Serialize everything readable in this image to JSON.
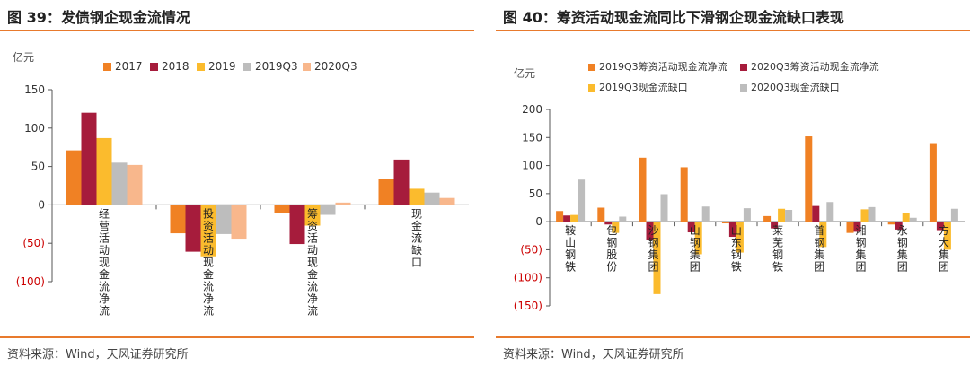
{
  "source_label": "资料来源：Wind，天风证券研究所",
  "colors": {
    "c2017": "#f08124",
    "c2018": "#a61c3c",
    "c2019": "#fbbb2d",
    "c2019Q3": "#bdbdbd",
    "c2020Q3": "#f8b78c",
    "negative_tick": "#cc0000"
  },
  "chart_data": [
    {
      "id": "left",
      "figure_title": "图 39：发债钢企现金流情况",
      "type": "bar",
      "unit": "亿元",
      "ylim": [
        -100,
        150
      ],
      "yticks": [
        150,
        100,
        50,
        0,
        -50,
        -100
      ],
      "ytick_labels": [
        "150",
        "100",
        "50",
        "0",
        "(50)",
        "(100)"
      ],
      "categories": [
        "经营活动现金流净流",
        "投资活动现金流净流",
        "筹资活动现金流净流",
        "现金流缺口"
      ],
      "series": [
        {
          "name": "2017",
          "values": [
            71,
            -37,
            -11,
            34
          ]
        },
        {
          "name": "2018",
          "values": [
            120,
            -61,
            -51,
            59
          ]
        },
        {
          "name": "2019",
          "values": [
            87,
            -67,
            -27,
            21
          ]
        },
        {
          "name": "2019Q3",
          "values": [
            55,
            -38,
            -13,
            16
          ]
        },
        {
          "name": "2020Q3",
          "values": [
            52,
            -44,
            3,
            9
          ]
        }
      ],
      "legend_position": "top",
      "grid": false
    },
    {
      "id": "right",
      "figure_title": "图 40：筹资活动现金流同比下滑钢企现金流缺口表现",
      "type": "bar",
      "unit": "亿元",
      "ylim": [
        -150,
        200
      ],
      "yticks": [
        200,
        150,
        100,
        50,
        0,
        -50,
        -100,
        -150
      ],
      "ytick_labels": [
        "200",
        "150",
        "100",
        "50",
        "0",
        "(50)",
        "(100)",
        "(150)"
      ],
      "categories": [
        "鞍山钢铁",
        "包钢股份",
        "沙钢集团",
        "山钢集团",
        "山东钢铁",
        "莱芜钢铁",
        "首钢集团",
        "湘钢集团",
        "永钢集团",
        "方大集团"
      ],
      "series": [
        {
          "name": "2019Q3筹资活动现金流净流",
          "values": [
            19,
            25,
            114,
            97,
            -3,
            10,
            152,
            -20,
            -5,
            140
          ]
        },
        {
          "name": "2020Q3筹资活动现金流净流",
          "values": [
            11,
            -5,
            -32,
            -19,
            -27,
            -12,
            28,
            -18,
            -14,
            -15
          ]
        },
        {
          "name": "2019Q3现金流缺口",
          "values": [
            12,
            -20,
            -129,
            -58,
            -55,
            23,
            -45,
            22,
            15,
            -50
          ]
        },
        {
          "name": "2020Q3现金流缺口",
          "values": [
            75,
            9,
            49,
            27,
            24,
            21,
            35,
            26,
            7,
            23
          ]
        }
      ],
      "legend_position": "top",
      "grid": false
    }
  ]
}
